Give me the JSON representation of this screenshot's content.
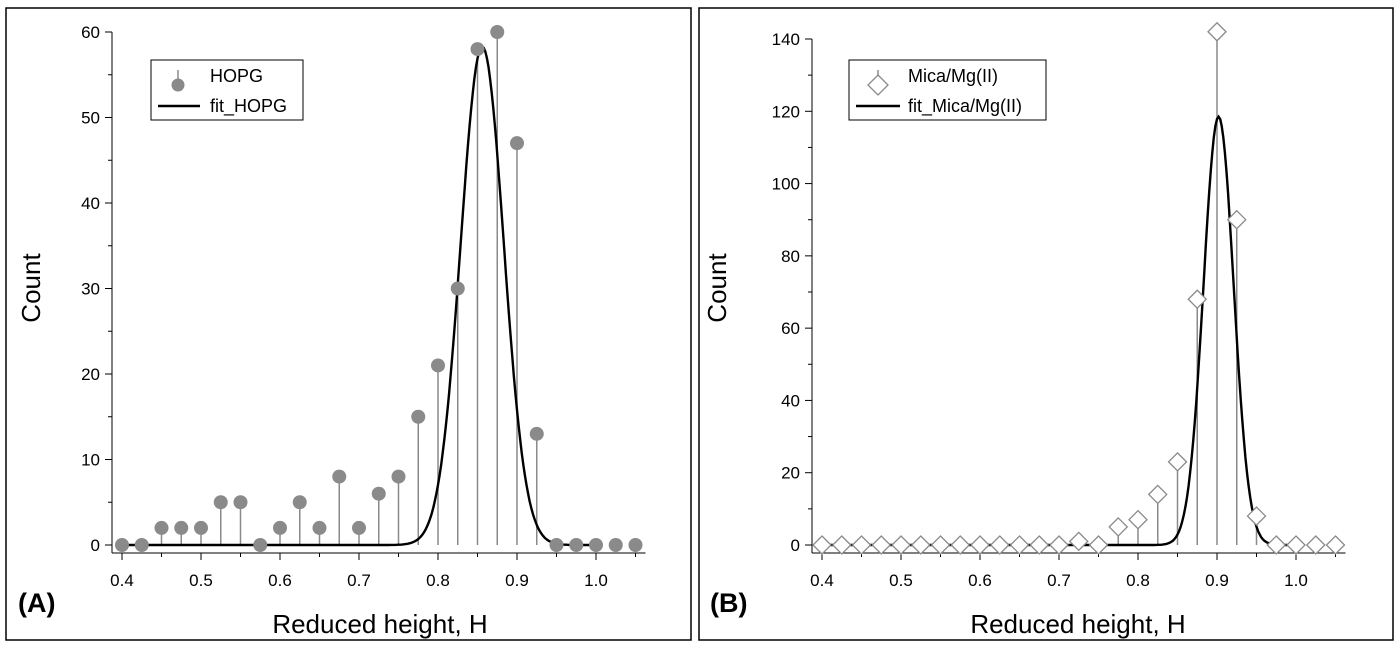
{
  "chart_data": [
    {
      "type": "scatter",
      "panel_label": "(A)",
      "xlabel": "Reduced height, H",
      "ylabel": "Count",
      "xlim": [
        0.4,
        1.05
      ],
      "ylim": [
        0,
        60
      ],
      "xticks": [
        "0.4",
        "0.5",
        "0.6",
        "0.7",
        "0.8",
        "0.9",
        "1.0"
      ],
      "yticks": [
        "0",
        "10",
        "20",
        "30",
        "40",
        "50",
        "60"
      ],
      "legend_position": "top-left",
      "marker": "filled-circle",
      "series": [
        {
          "name": "HOPG",
          "style": "stick-markers",
          "x": [
            0.4,
            0.425,
            0.45,
            0.475,
            0.5,
            0.525,
            0.55,
            0.575,
            0.6,
            0.625,
            0.65,
            0.675,
            0.7,
            0.725,
            0.75,
            0.775,
            0.8,
            0.825,
            0.85,
            0.875,
            0.9,
            0.925,
            0.95,
            0.975,
            1.0,
            1.025,
            1.05
          ],
          "values": [
            0,
            0,
            2,
            2,
            2,
            5,
            5,
            0,
            2,
            5,
            2,
            8,
            2,
            6,
            8,
            15,
            21,
            30,
            58,
            60,
            47,
            13,
            0,
            0,
            0,
            0,
            0
          ]
        },
        {
          "name": "fit_HOPG",
          "style": "line",
          "model": "gaussian",
          "baseline": 0,
          "amplitude": 58.3,
          "center": 0.856,
          "width": 0.0385,
          "x_range": [
            0.4,
            1.0
          ]
        }
      ]
    },
    {
      "type": "scatter",
      "panel_label": "(B)",
      "xlabel": "Reduced height, H",
      "ylabel": "Count",
      "xlim": [
        0.4,
        1.05
      ],
      "ylim": [
        0,
        140
      ],
      "xticks": [
        "0.4",
        "0.5",
        "0.6",
        "0.7",
        "0.8",
        "0.9",
        "1.0"
      ],
      "yticks": [
        "0",
        "20",
        "40",
        "60",
        "80",
        "100",
        "120",
        "140"
      ],
      "legend_position": "top-left",
      "marker": "open-diamond",
      "series": [
        {
          "name": "Mica/Mg(II)",
          "style": "stick-markers",
          "x": [
            0.4,
            0.425,
            0.45,
            0.475,
            0.5,
            0.525,
            0.55,
            0.575,
            0.6,
            0.625,
            0.65,
            0.675,
            0.7,
            0.725,
            0.75,
            0.775,
            0.8,
            0.825,
            0.85,
            0.875,
            0.9,
            0.925,
            0.95,
            0.975,
            1.0,
            1.025,
            1.05
          ],
          "values": [
            0,
            0,
            0,
            0,
            0,
            0,
            0,
            0,
            0,
            0,
            0,
            0,
            0,
            1,
            0,
            5,
            7,
            14,
            23,
            68,
            142,
            90,
            8,
            0,
            0,
            0,
            0
          ]
        },
        {
          "name": "fit_Mica/Mg(II)",
          "style": "line",
          "model": "gaussian",
          "baseline": 0,
          "amplitude": 118.5,
          "center": 0.902,
          "width": 0.027,
          "x_range": [
            0.4,
            1.0
          ]
        }
      ]
    }
  ]
}
